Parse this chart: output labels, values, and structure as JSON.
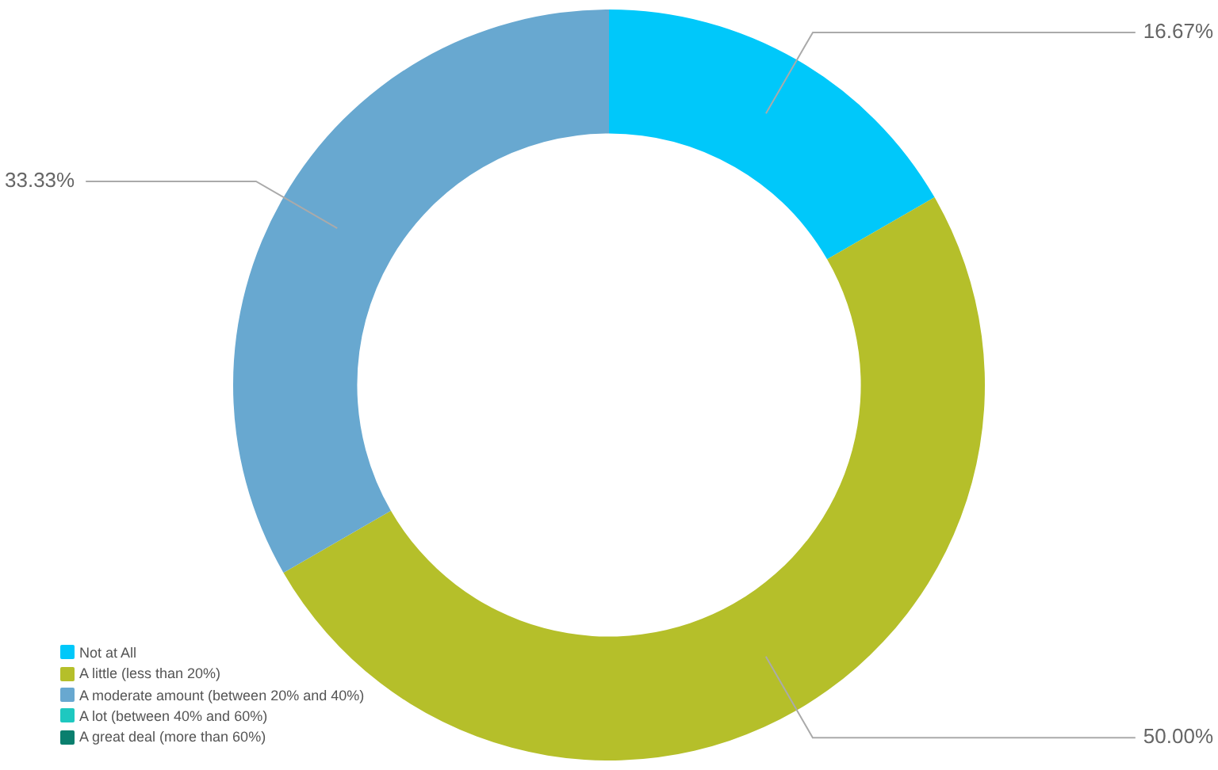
{
  "chart_data": {
    "type": "donut",
    "categories": [
      "Not at All",
      "A little (less than 20%)",
      "A moderate amount (between 20% and 40%)",
      "A lot (between 40% and 60%)",
      "A great deal (more than 60%)"
    ],
    "values": [
      16.67,
      50.0,
      33.33,
      0,
      0
    ],
    "value_labels": [
      "16.67%",
      "50.00%",
      "33.33%",
      null,
      null
    ],
    "colors": [
      "#00c8fa",
      "#b5bf2a",
      "#68a8d0",
      "#1ec8c0",
      "#0a7f6e"
    ],
    "legend": "bottom left"
  }
}
